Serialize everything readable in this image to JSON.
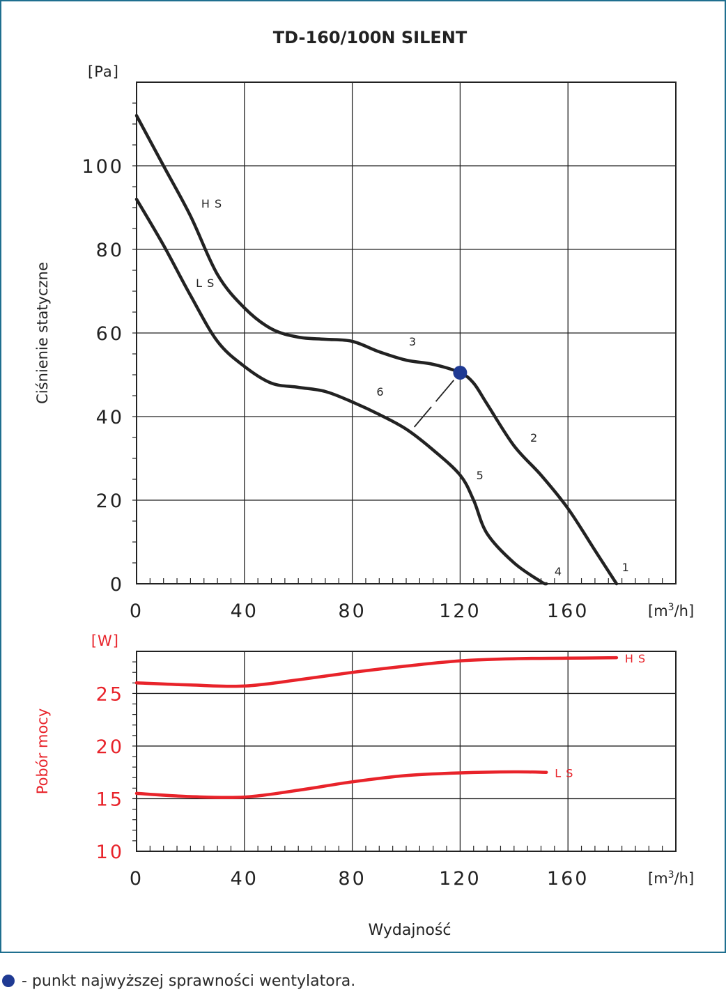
{
  "chart_data": [
    {
      "type": "line",
      "title": "TD-160/100N SILENT",
      "ylabel": "Ciśnienie statyczne",
      "yunit": "[Pa]",
      "xunit_base": "[m",
      "xunit_sup": "3",
      "xunit_tail": "/h]",
      "xlim": [
        0,
        200
      ],
      "ylim": [
        0,
        120
      ],
      "xticks": [
        "0",
        "40",
        "80",
        "120",
        "160"
      ],
      "yticks": [
        "0",
        "20",
        "40",
        "60",
        "80",
        "100"
      ],
      "grid": true,
      "series": [
        {
          "name": "H S",
          "color": "#222222",
          "x": [
            0,
            10,
            20,
            30,
            40,
            50,
            60,
            70,
            80,
            90,
            100,
            110,
            120,
            125,
            130,
            140,
            150,
            160,
            170,
            178
          ],
          "y": [
            112,
            100,
            88,
            74,
            66,
            61,
            59,
            58.5,
            58,
            55.5,
            53.5,
            52.5,
            50.5,
            48,
            43,
            33,
            26,
            18,
            8,
            0
          ]
        },
        {
          "name": "L S",
          "color": "#222222",
          "x": [
            0,
            10,
            20,
            30,
            40,
            50,
            60,
            70,
            80,
            90,
            100,
            110,
            120,
            125,
            130,
            140,
            150,
            152
          ],
          "y": [
            92,
            81,
            69,
            58,
            52,
            48,
            47,
            46,
            43.5,
            40.5,
            37,
            32,
            26,
            20,
            12,
            5,
            0.5,
            0
          ]
        }
      ],
      "curve_labels": [
        {
          "text": "H S",
          "x": 24,
          "y": 90
        },
        {
          "text": "L S",
          "x": 22,
          "y": 71
        },
        {
          "text": "3",
          "x": 101,
          "y": 57
        },
        {
          "text": "6",
          "x": 89,
          "y": 45
        },
        {
          "text": "2",
          "x": 146,
          "y": 34
        },
        {
          "text": "5",
          "x": 126,
          "y": 25
        },
        {
          "text": "4",
          "x": 155,
          "y": 2
        },
        {
          "text": "1",
          "x": 180,
          "y": 3
        }
      ],
      "efficiency_point": {
        "x": 120,
        "y": 50.5,
        "color": "#1f3a93"
      },
      "efficiency_line": {
        "from": [
          103,
          37.5
        ],
        "to": [
          120,
          50.5
        ]
      }
    },
    {
      "type": "line",
      "ylabel": "Pobór mocy",
      "yunit": "[W]",
      "xlabel": "Wydajność",
      "xunit_base": "[m",
      "xunit_sup": "3",
      "xunit_tail": "/h]",
      "xlim": [
        0,
        200
      ],
      "ylim": [
        10,
        29
      ],
      "xticks": [
        "0",
        "40",
        "80",
        "120",
        "160"
      ],
      "yticks": [
        "10",
        "15",
        "20",
        "25"
      ],
      "grid": true,
      "series": [
        {
          "name": "H S",
          "color": "#e8232a",
          "x": [
            0,
            20,
            40,
            60,
            80,
            100,
            120,
            140,
            160,
            178
          ],
          "y": [
            26,
            25.8,
            25.7,
            26.3,
            27,
            27.6,
            28.1,
            28.3,
            28.35,
            28.4
          ]
        },
        {
          "name": "L S",
          "color": "#e8232a",
          "x": [
            0,
            20,
            40,
            60,
            80,
            100,
            120,
            140,
            152
          ],
          "y": [
            15.5,
            15.2,
            15.15,
            15.8,
            16.6,
            17.2,
            17.45,
            17.55,
            17.5
          ]
        }
      ]
    }
  ],
  "legend": {
    "text": "- punkt najwyższej sprawności wentylatora."
  }
}
